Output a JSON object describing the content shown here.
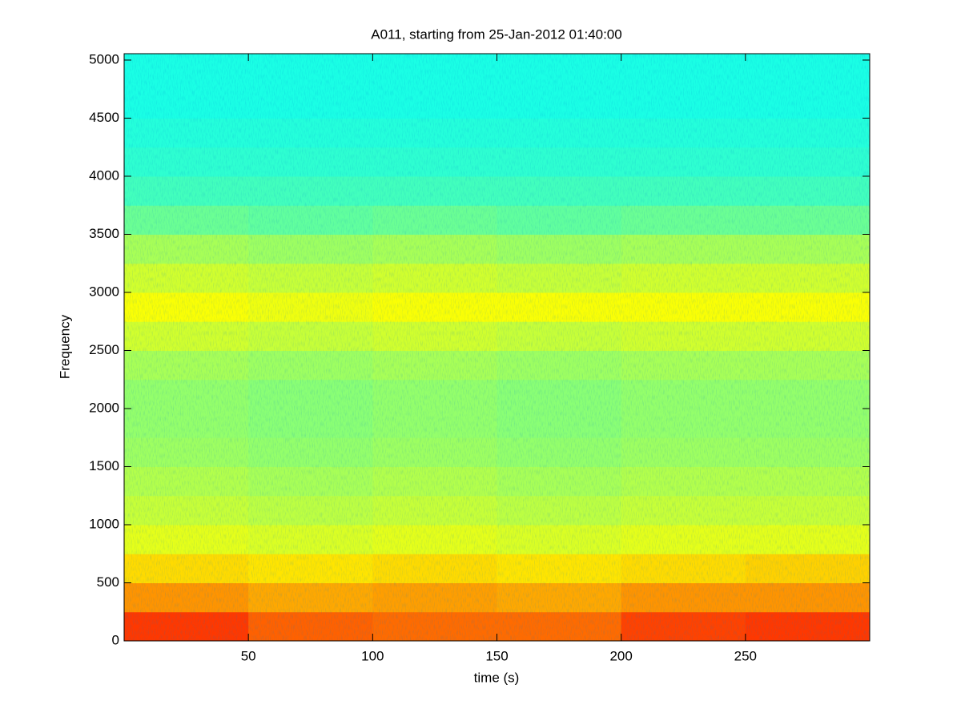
{
  "chart_data": {
    "type": "heatmap",
    "title": "A011, starting from 25-Jan-2012 01:40:00",
    "xlabel": "time (s)",
    "ylabel": "Frequency",
    "colormap": "jet",
    "clim": [
      0,
      1
    ],
    "xbins": [
      0,
      50,
      100,
      150,
      200,
      250,
      300
    ],
    "ybins": [
      0,
      250,
      500,
      750,
      1000,
      1250,
      1500,
      1750,
      2000,
      2250,
      2500,
      2750,
      3000,
      3250,
      3500,
      3750,
      4000,
      4250,
      4500,
      4750,
      5000,
      5250
    ],
    "z": [
      [
        0.82,
        0.78,
        0.77,
        0.77,
        0.81,
        0.82
      ],
      [
        0.73,
        0.71,
        0.72,
        0.71,
        0.73,
        0.73
      ],
      [
        0.66,
        0.65,
        0.66,
        0.65,
        0.66,
        0.67
      ],
      [
        0.6,
        0.59,
        0.6,
        0.59,
        0.6,
        0.6
      ],
      [
        0.57,
        0.56,
        0.57,
        0.56,
        0.57,
        0.57
      ],
      [
        0.55,
        0.54,
        0.55,
        0.54,
        0.55,
        0.55
      ],
      [
        0.53,
        0.52,
        0.53,
        0.52,
        0.53,
        0.53
      ],
      [
        0.52,
        0.51,
        0.52,
        0.51,
        0.52,
        0.52
      ],
      [
        0.52,
        0.51,
        0.52,
        0.51,
        0.52,
        0.52
      ],
      [
        0.54,
        0.53,
        0.54,
        0.53,
        0.54,
        0.54
      ],
      [
        0.58,
        0.57,
        0.58,
        0.57,
        0.58,
        0.58
      ],
      [
        0.62,
        0.61,
        0.62,
        0.62,
        0.62,
        0.62
      ],
      [
        0.58,
        0.57,
        0.58,
        0.57,
        0.58,
        0.58
      ],
      [
        0.54,
        0.53,
        0.54,
        0.53,
        0.54,
        0.54
      ],
      [
        0.48,
        0.47,
        0.48,
        0.47,
        0.48,
        0.48
      ],
      [
        0.44,
        0.44,
        0.44,
        0.44,
        0.44,
        0.44
      ],
      [
        0.42,
        0.42,
        0.42,
        0.42,
        0.42,
        0.42
      ],
      [
        0.41,
        0.41,
        0.41,
        0.41,
        0.41,
        0.41
      ],
      [
        0.4,
        0.4,
        0.4,
        0.4,
        0.4,
        0.4
      ],
      [
        0.4,
        0.4,
        0.4,
        0.4,
        0.4,
        0.4
      ],
      [
        0.4,
        0.4,
        0.4,
        0.4,
        0.4,
        0.4
      ]
    ],
    "xlim": [
      0,
      300
    ],
    "ylim": [
      0,
      5055
    ],
    "xticks": [
      50,
      100,
      150,
      200,
      250
    ],
    "yticks": [
      0,
      500,
      1000,
      1500,
      2000,
      2500,
      3000,
      3500,
      4000,
      4500,
      5000
    ]
  }
}
